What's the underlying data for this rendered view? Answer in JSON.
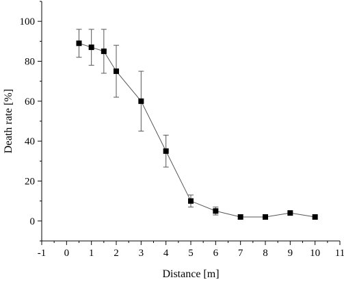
{
  "chart_data": {
    "type": "scatter",
    "xlabel": "Distance [m]",
    "ylabel": "Death rate [%]",
    "xlim": [
      -1,
      11
    ],
    "ylim": [
      -10,
      110
    ],
    "xticks": [
      -1,
      0,
      1,
      2,
      3,
      4,
      5,
      6,
      7,
      8,
      9,
      10,
      11
    ],
    "yticks": [
      0,
      20,
      40,
      60,
      80,
      100
    ],
    "grid": false,
    "series": [
      {
        "x": [
          0.5,
          1,
          1.5,
          2,
          3,
          4,
          5,
          6,
          7,
          8,
          9,
          10
        ],
        "y": [
          89,
          87,
          85,
          75,
          60,
          35,
          10,
          5,
          2,
          2,
          4,
          2
        ],
        "err": [
          7,
          9,
          11,
          13,
          15,
          8,
          3,
          2,
          0,
          0,
          0,
          0
        ],
        "marker": "square",
        "color": "#000000",
        "line_color": "#555555"
      }
    ]
  }
}
